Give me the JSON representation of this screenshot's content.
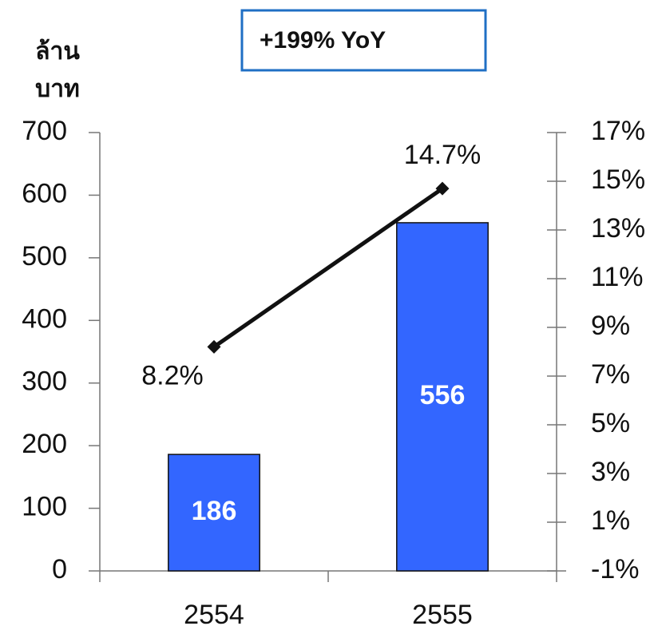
{
  "chart_data": {
    "type": "bar",
    "annotation": "+199% YoY",
    "ylabel": [
      "ล้าน",
      "บาท"
    ],
    "categories": [
      "2554",
      "2555"
    ],
    "series": [
      {
        "color": "#3366ff",
        "values": [
          186,
          556
        ]
      },
      {
        "type": "line",
        "axis": "y2",
        "color": "#111111",
        "values": [
          8.2,
          14.7
        ],
        "value_labels": [
          "8.2%",
          "14.7%"
        ]
      }
    ],
    "ylim": [
      0,
      700
    ],
    "yticks": [
      0,
      100,
      200,
      300,
      400,
      500,
      600,
      700
    ],
    "y2lim": [
      -1,
      17
    ],
    "y2ticks": [
      {
        "value": -1,
        "label": "-1%"
      },
      {
        "value": 1,
        "label": "1%"
      },
      {
        "value": 3,
        "label": "3%"
      },
      {
        "value": 5,
        "label": "5%"
      },
      {
        "value": 7,
        "label": "7%"
      },
      {
        "value": 9,
        "label": "9%"
      },
      {
        "value": 11,
        "label": "11%"
      },
      {
        "value": 13,
        "label": "13%"
      },
      {
        "value": 15,
        "label": "15%"
      },
      {
        "value": 17,
        "label": "17%"
      }
    ],
    "grid": false
  }
}
